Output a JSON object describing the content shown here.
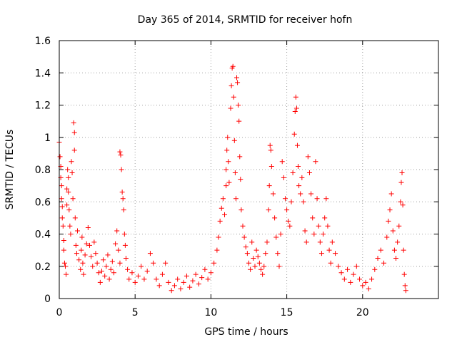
{
  "chart_data": {
    "type": "scatter",
    "title": "Day 365 of 2014, SRMTID for receiver hofn",
    "xlabel": "GPS time / hours",
    "ylabel": "SRMTID / TECUs",
    "xlim": [
      0,
      25
    ],
    "ylim": [
      0,
      1.6
    ],
    "x_ticks": [
      0,
      5,
      10,
      15,
      20
    ],
    "x_tick_labels": [
      "0",
      "5",
      "10",
      "15",
      "20"
    ],
    "y_ticks": [
      0,
      0.2,
      0.4,
      0.6,
      0.8,
      1.0,
      1.2,
      1.4,
      1.6
    ],
    "y_tick_labels": [
      "0",
      "0.2",
      "0.4",
      "0.6",
      "0.8",
      "1",
      "1.2",
      "1.4",
      "1.6"
    ],
    "grid": true,
    "marker": "plus",
    "color": "#ff0000",
    "series": [
      {
        "name": "SRMTID",
        "points": [
          [
            0.0,
            0.97
          ],
          [
            0.05,
            0.88
          ],
          [
            0.1,
            0.82
          ],
          [
            0.1,
            0.75
          ],
          [
            0.15,
            0.7
          ],
          [
            0.15,
            0.62
          ],
          [
            0.2,
            0.57
          ],
          [
            0.2,
            0.5
          ],
          [
            0.25,
            0.45
          ],
          [
            0.3,
            0.36
          ],
          [
            0.3,
            0.3
          ],
          [
            0.35,
            0.22
          ],
          [
            0.4,
            0.2
          ],
          [
            0.45,
            0.15
          ],
          [
            0.5,
            0.58
          ],
          [
            0.5,
            0.68
          ],
          [
            0.55,
            0.8
          ],
          [
            0.6,
            0.75
          ],
          [
            0.6,
            0.66
          ],
          [
            0.65,
            0.55
          ],
          [
            0.7,
            0.45
          ],
          [
            0.75,
            0.4
          ],
          [
            0.8,
            0.85
          ],
          [
            0.85,
            0.78
          ],
          [
            0.9,
            0.62
          ],
          [
            0.95,
            1.09
          ],
          [
            1.0,
            1.03
          ],
          [
            1.0,
            0.92
          ],
          [
            1.05,
            0.5
          ],
          [
            1.1,
            0.33
          ],
          [
            1.15,
            0.28
          ],
          [
            1.2,
            0.42
          ],
          [
            1.3,
            0.24
          ],
          [
            1.4,
            0.18
          ],
          [
            1.45,
            0.3
          ],
          [
            1.5,
            0.38
          ],
          [
            1.55,
            0.22
          ],
          [
            1.6,
            0.15
          ],
          [
            1.7,
            0.27
          ],
          [
            1.8,
            0.34
          ],
          [
            1.9,
            0.44
          ],
          [
            2.0,
            0.33
          ],
          [
            2.1,
            0.26
          ],
          [
            2.2,
            0.2
          ],
          [
            2.3,
            0.35
          ],
          [
            2.4,
            0.28
          ],
          [
            2.5,
            0.22
          ],
          [
            2.6,
            0.16
          ],
          [
            2.7,
            0.1
          ],
          [
            2.8,
            0.17
          ],
          [
            2.9,
            0.24
          ],
          [
            3.0,
            0.14
          ],
          [
            3.1,
            0.2
          ],
          [
            3.2,
            0.27
          ],
          [
            3.3,
            0.12
          ],
          [
            3.4,
            0.18
          ],
          [
            3.5,
            0.23
          ],
          [
            3.6,
            0.16
          ],
          [
            3.7,
            0.34
          ],
          [
            3.8,
            0.42
          ],
          [
            3.9,
            0.3
          ],
          [
            4.0,
            0.22
          ],
          [
            4.0,
            0.91
          ],
          [
            4.05,
            0.89
          ],
          [
            4.1,
            0.8
          ],
          [
            4.15,
            0.66
          ],
          [
            4.2,
            0.62
          ],
          [
            4.25,
            0.55
          ],
          [
            4.3,
            0.4
          ],
          [
            4.35,
            0.33
          ],
          [
            4.4,
            0.25
          ],
          [
            4.5,
            0.18
          ],
          [
            4.6,
            0.12
          ],
          [
            4.8,
            0.16
          ],
          [
            5.0,
            0.1
          ],
          [
            5.2,
            0.14
          ],
          [
            5.4,
            0.2
          ],
          [
            5.6,
            0.12
          ],
          [
            5.8,
            0.17
          ],
          [
            6.0,
            0.28
          ],
          [
            6.2,
            0.22
          ],
          [
            6.4,
            0.12
          ],
          [
            6.6,
            0.08
          ],
          [
            6.8,
            0.15
          ],
          [
            7.0,
            0.22
          ],
          [
            7.2,
            0.1
          ],
          [
            7.4,
            0.05
          ],
          [
            7.6,
            0.08
          ],
          [
            7.8,
            0.12
          ],
          [
            8.0,
            0.06
          ],
          [
            8.2,
            0.1
          ],
          [
            8.4,
            0.14
          ],
          [
            8.6,
            0.07
          ],
          [
            8.8,
            0.11
          ],
          [
            9.0,
            0.15
          ],
          [
            9.2,
            0.09
          ],
          [
            9.4,
            0.13
          ],
          [
            9.6,
            0.18
          ],
          [
            9.8,
            0.12
          ],
          [
            10.0,
            0.16
          ],
          [
            10.2,
            0.22
          ],
          [
            10.4,
            0.3
          ],
          [
            10.5,
            0.38
          ],
          [
            10.6,
            0.48
          ],
          [
            10.7,
            0.56
          ],
          [
            10.8,
            0.62
          ],
          [
            10.9,
            0.52
          ],
          [
            11.0,
            0.7
          ],
          [
            11.0,
            0.8
          ],
          [
            11.05,
            0.92
          ],
          [
            11.1,
            1.0
          ],
          [
            11.15,
            0.85
          ],
          [
            11.2,
            0.72
          ],
          [
            11.3,
            1.18
          ],
          [
            11.35,
            1.32
          ],
          [
            11.4,
            1.43
          ],
          [
            11.45,
            1.44
          ],
          [
            11.5,
            1.25
          ],
          [
            11.55,
            0.98
          ],
          [
            11.6,
            0.78
          ],
          [
            11.65,
            0.62
          ],
          [
            11.7,
            1.37
          ],
          [
            11.75,
            1.34
          ],
          [
            11.8,
            1.2
          ],
          [
            11.85,
            1.1
          ],
          [
            11.9,
            0.88
          ],
          [
            11.95,
            0.74
          ],
          [
            12.0,
            0.55
          ],
          [
            12.1,
            0.45
          ],
          [
            12.2,
            0.38
          ],
          [
            12.3,
            0.32
          ],
          [
            12.4,
            0.28
          ],
          [
            12.5,
            0.22
          ],
          [
            12.6,
            0.18
          ],
          [
            12.7,
            0.35
          ],
          [
            12.8,
            0.25
          ],
          [
            12.9,
            0.2
          ],
          [
            13.0,
            0.3
          ],
          [
            13.1,
            0.26
          ],
          [
            13.2,
            0.22
          ],
          [
            13.3,
            0.18
          ],
          [
            13.4,
            0.15
          ],
          [
            13.5,
            0.2
          ],
          [
            13.6,
            0.28
          ],
          [
            13.7,
            0.35
          ],
          [
            13.8,
            0.55
          ],
          [
            13.85,
            0.7
          ],
          [
            13.9,
            0.95
          ],
          [
            13.95,
            0.92
          ],
          [
            14.0,
            0.82
          ],
          [
            14.1,
            0.65
          ],
          [
            14.2,
            0.5
          ],
          [
            14.3,
            0.38
          ],
          [
            14.4,
            0.28
          ],
          [
            14.5,
            0.2
          ],
          [
            14.6,
            0.4
          ],
          [
            14.7,
            0.85
          ],
          [
            14.8,
            0.75
          ],
          [
            14.9,
            0.62
          ],
          [
            15.0,
            0.55
          ],
          [
            15.1,
            0.48
          ],
          [
            15.2,
            0.45
          ],
          [
            15.3,
            0.6
          ],
          [
            15.4,
            0.78
          ],
          [
            15.5,
            1.02
          ],
          [
            15.55,
            1.16
          ],
          [
            15.6,
            1.25
          ],
          [
            15.65,
            1.18
          ],
          [
            15.7,
            0.95
          ],
          [
            15.75,
            0.82
          ],
          [
            15.8,
            0.7
          ],
          [
            15.9,
            0.65
          ],
          [
            16.0,
            0.75
          ],
          [
            16.1,
            0.6
          ],
          [
            16.2,
            0.42
          ],
          [
            16.3,
            0.35
          ],
          [
            16.4,
            0.88
          ],
          [
            16.5,
            0.78
          ],
          [
            16.6,
            0.65
          ],
          [
            16.7,
            0.5
          ],
          [
            16.8,
            0.4
          ],
          [
            16.9,
            0.85
          ],
          [
            17.0,
            0.62
          ],
          [
            17.1,
            0.45
          ],
          [
            17.2,
            0.35
          ],
          [
            17.3,
            0.28
          ],
          [
            17.4,
            0.4
          ],
          [
            17.5,
            0.5
          ],
          [
            17.6,
            0.62
          ],
          [
            17.7,
            0.45
          ],
          [
            17.8,
            0.3
          ],
          [
            17.9,
            0.22
          ],
          [
            18.0,
            0.35
          ],
          [
            18.2,
            0.28
          ],
          [
            18.4,
            0.2
          ],
          [
            18.6,
            0.16
          ],
          [
            18.8,
            0.12
          ],
          [
            19.0,
            0.18
          ],
          [
            19.2,
            0.1
          ],
          [
            19.4,
            0.15
          ],
          [
            19.6,
            0.2
          ],
          [
            19.8,
            0.12
          ],
          [
            20.0,
            0.08
          ],
          [
            20.2,
            0.1
          ],
          [
            20.4,
            0.06
          ],
          [
            20.6,
            0.12
          ],
          [
            20.8,
            0.18
          ],
          [
            21.0,
            0.25
          ],
          [
            21.2,
            0.3
          ],
          [
            21.4,
            0.22
          ],
          [
            21.6,
            0.38
          ],
          [
            21.7,
            0.48
          ],
          [
            21.8,
            0.55
          ],
          [
            21.9,
            0.65
          ],
          [
            22.0,
            0.42
          ],
          [
            22.1,
            0.3
          ],
          [
            22.2,
            0.25
          ],
          [
            22.3,
            0.35
          ],
          [
            22.4,
            0.45
          ],
          [
            22.5,
            0.6
          ],
          [
            22.55,
            0.72
          ],
          [
            22.6,
            0.78
          ],
          [
            22.65,
            0.58
          ],
          [
            22.7,
            0.3
          ],
          [
            22.75,
            0.15
          ],
          [
            22.8,
            0.08
          ],
          [
            22.85,
            0.05
          ]
        ]
      }
    ]
  }
}
